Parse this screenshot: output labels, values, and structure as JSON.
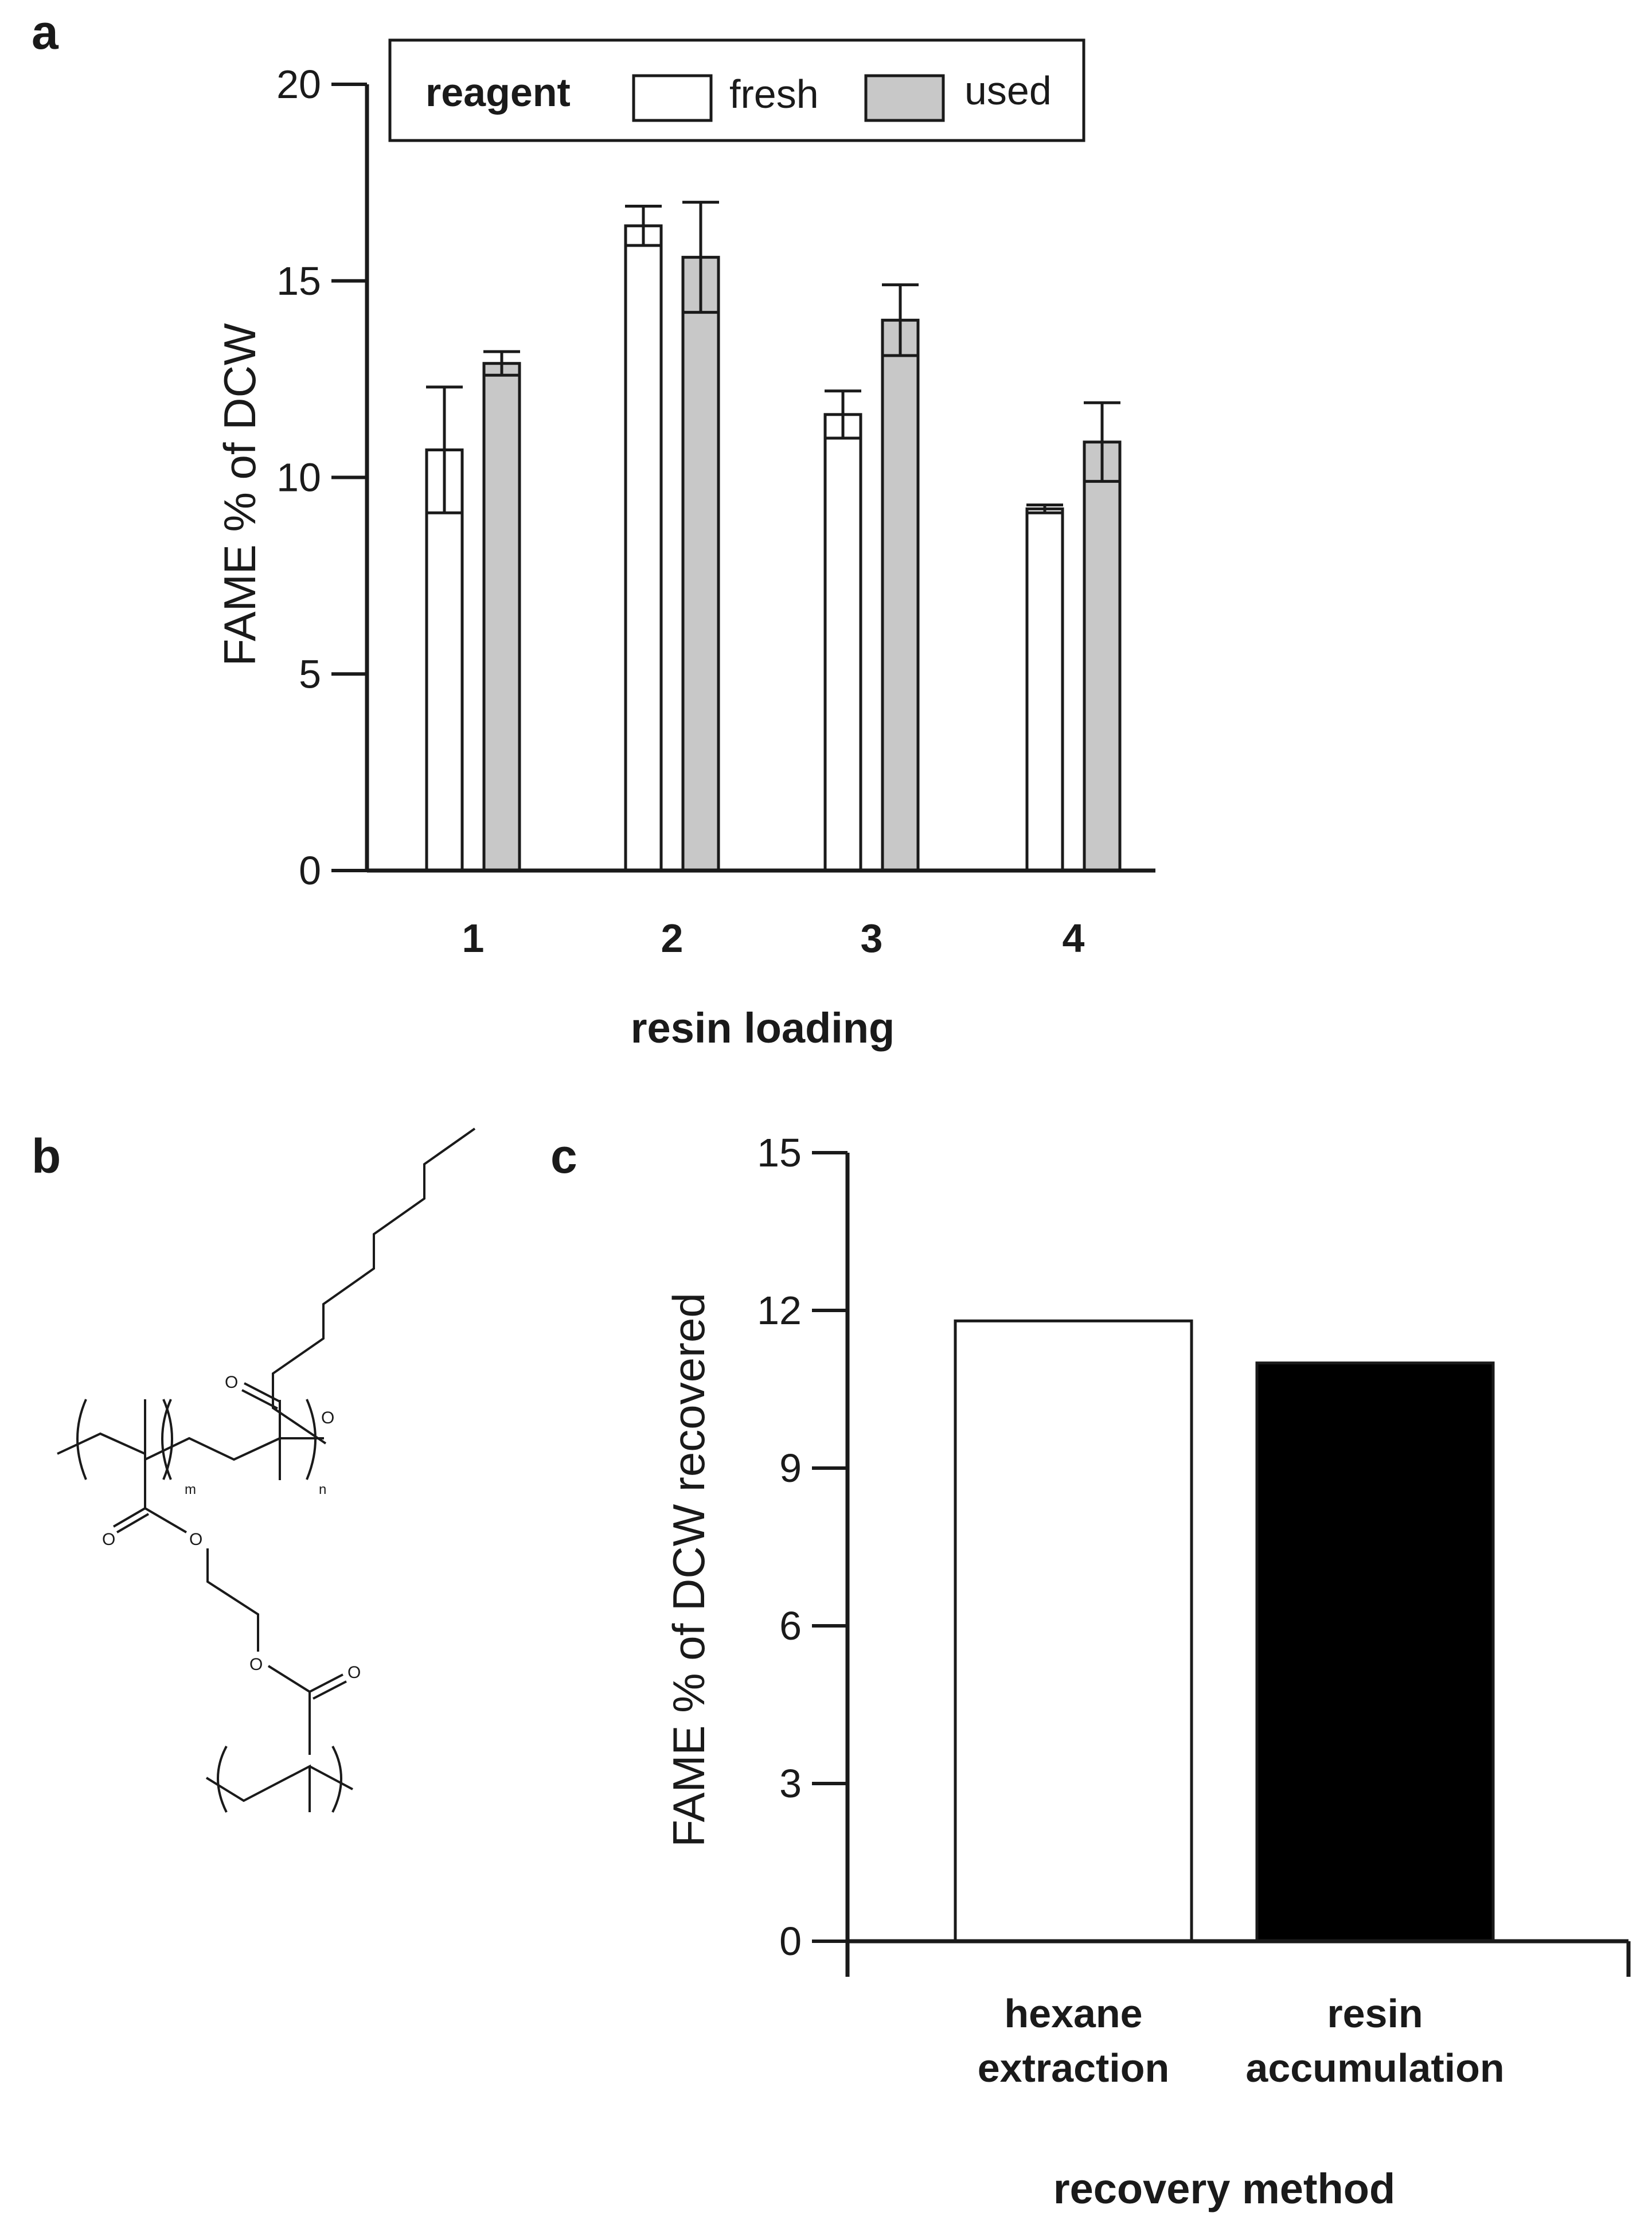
{
  "panels": {
    "a": "a",
    "b": "b",
    "c": "c"
  },
  "chart_data": [
    {
      "id": "a",
      "type": "bar",
      "xlabel": "resin loading",
      "ylabel": "FAME % of DCW",
      "categories": [
        "1",
        "2",
        "3",
        "4"
      ],
      "ylim": [
        0,
        20
      ],
      "yticks": [
        0,
        5,
        10,
        15,
        20
      ],
      "legend": {
        "title": "reagent",
        "placement": "top"
      },
      "series": [
        {
          "name": "fresh",
          "color": "#ffffff",
          "values": [
            10.7,
            16.4,
            11.6,
            9.2
          ],
          "errors": [
            1.6,
            0.5,
            0.6,
            0.1
          ]
        },
        {
          "name": "used",
          "color": "#c8c8c8",
          "values": [
            12.9,
            15.6,
            14.0,
            10.9
          ],
          "errors": [
            0.3,
            1.4,
            0.9,
            1.0
          ]
        }
      ],
      "grid": false
    },
    {
      "id": "c",
      "type": "bar",
      "xlabel": "recovery method",
      "ylabel": "FAME % of DCW recovered",
      "categories": [
        [
          "hexane",
          "extraction"
        ],
        [
          "resin",
          "accumulation"
        ]
      ],
      "ylim": [
        0,
        15
      ],
      "yticks": [
        0,
        3,
        6,
        9,
        12,
        15
      ],
      "values": [
        11.8,
        11.0
      ],
      "colors": [
        "#ffffff",
        "#000000"
      ],
      "grid": false
    }
  ],
  "structure": {
    "atoms": {
      "o_top_carbonyl": "O",
      "o_top_ester": "O",
      "o_mid_carbonyl": "O",
      "o_mid_ester": "O",
      "o_low_ester": "O",
      "o_low_carbonyl": "O"
    },
    "subscripts": {
      "m": "m",
      "n": "n"
    }
  }
}
